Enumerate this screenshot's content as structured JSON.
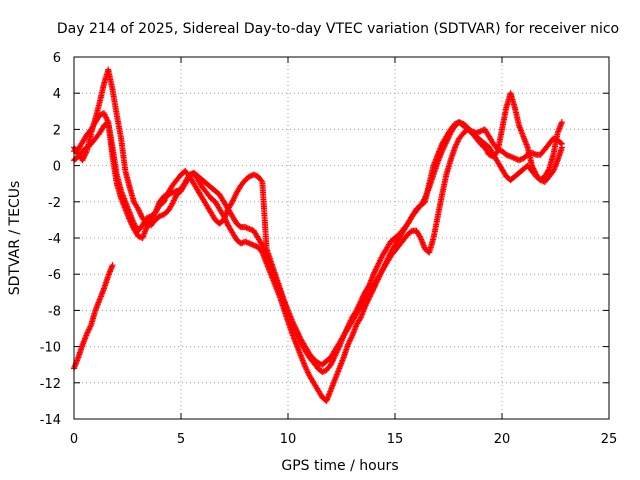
{
  "chart_data": {
    "type": "scatter",
    "title": "Day 214 of 2025, Sidereal Day-to-day VTEC variation (SDTVAR) for receiver nico",
    "xlabel": "GPS time / hours",
    "ylabel": "SDTVAR / TECUs",
    "xlim": [
      0,
      25
    ],
    "ylim": [
      -14,
      6
    ],
    "xticks": [
      0,
      5,
      10,
      15,
      20,
      25
    ],
    "yticks": [
      -14,
      -12,
      -10,
      -8,
      -6,
      -4,
      -2,
      0,
      2,
      4,
      6
    ],
    "grid": true,
    "marker": "plus",
    "color": "#ff0000",
    "series": [
      {
        "name": "track-1",
        "x": [
          0.0,
          0.2,
          0.4,
          0.6,
          0.8,
          1.0,
          1.2,
          1.4,
          1.6,
          1.8,
          2.0,
          2.2,
          2.4,
          2.6,
          2.8,
          3.0,
          3.2,
          3.4,
          3.6,
          3.8,
          4.0,
          4.2,
          4.4,
          4.6,
          4.8,
          5.0,
          5.2,
          5.4,
          5.6,
          5.8,
          6.0,
          6.2,
          6.4,
          6.6,
          6.8,
          7.0,
          7.2,
          7.4,
          7.6,
          7.8,
          8.0,
          8.2,
          8.4,
          8.6,
          8.8,
          9.0,
          9.2,
          9.4,
          9.6,
          9.8,
          10.0,
          10.2,
          10.4,
          10.6,
          10.8,
          11.0,
          11.2,
          11.4,
          11.6,
          11.8,
          12.0,
          12.2,
          12.4,
          12.6,
          12.8,
          13.0,
          13.2,
          13.4,
          13.6,
          13.8,
          14.0,
          14.2,
          14.4,
          14.6,
          14.8,
          15.0,
          15.2,
          15.4,
          15.6,
          15.8,
          16.0,
          16.2,
          16.4,
          16.6,
          16.8,
          17.0,
          17.2,
          17.4,
          17.6,
          17.8,
          18.0,
          18.2,
          18.4,
          18.6,
          18.8,
          19.0,
          19.2,
          19.4,
          19.6,
          19.8,
          20.0,
          20.2,
          20.4,
          20.6,
          20.8,
          21.0,
          21.2,
          21.4,
          21.6,
          21.8,
          22.0,
          22.2,
          22.4,
          22.6,
          22.8
        ],
        "y": [
          0.8,
          0.9,
          1.3,
          1.7,
          2.0,
          2.4,
          2.8,
          2.9,
          2.4,
          1.0,
          -0.5,
          -1.4,
          -2.0,
          -2.6,
          -3.2,
          -3.6,
          -3.3,
          -2.9,
          -2.8,
          -2.6,
          -2.0,
          -1.7,
          -1.6,
          -1.5,
          -1.4,
          -1.3,
          -0.9,
          -0.5,
          -0.4,
          -0.6,
          -0.8,
          -1.0,
          -1.2,
          -1.4,
          -1.6,
          -2.0,
          -2.4,
          -2.8,
          -3.2,
          -3.4,
          -3.4,
          -3.5,
          -3.6,
          -4.0,
          -4.4,
          -5.0,
          -5.6,
          -6.2,
          -6.8,
          -7.5,
          -8.2,
          -8.8,
          -9.3,
          -9.8,
          -10.2,
          -10.6,
          -10.9,
          -11.2,
          -11.4,
          -11.3,
          -11.0,
          -10.5,
          -10.0,
          -9.4,
          -9.0,
          -8.6,
          -8.2,
          -7.8,
          -7.4,
          -7.0,
          -6.6,
          -6.2,
          -5.8,
          -5.4,
          -5.0,
          -4.7,
          -4.4,
          -4.1,
          -3.8,
          -3.6,
          -3.6,
          -4.0,
          -4.6,
          -4.8,
          -4.0,
          -2.8,
          -1.6,
          -0.5,
          0.3,
          1.0,
          1.5,
          1.8,
          2.0,
          1.9,
          1.8,
          1.9,
          2.0,
          1.6,
          1.2,
          0.9,
          0.8,
          0.6,
          0.5,
          0.4,
          0.3,
          0.4,
          0.6,
          0.7,
          0.6,
          0.6,
          0.9,
          1.2,
          1.5,
          1.4,
          1.2
        ]
      },
      {
        "name": "track-2",
        "x": [
          0.0,
          0.2,
          0.4,
          0.6,
          0.8,
          1.0,
          1.2,
          1.4,
          1.6,
          1.8,
          2.0,
          2.2,
          2.4,
          2.6,
          2.8,
          3.0,
          3.2,
          3.4,
          3.6,
          3.8,
          4.0,
          4.2,
          4.4,
          4.6,
          4.8,
          5.0,
          5.2,
          5.4,
          5.6,
          5.8,
          6.0,
          6.2,
          6.4,
          6.6,
          6.8,
          7.0,
          7.2,
          7.4,
          7.6,
          7.8,
          8.0,
          8.2,
          8.4,
          8.6,
          8.8,
          9.0,
          9.2,
          9.4,
          9.6,
          9.8,
          10.0,
          10.2,
          10.4,
          10.6,
          10.8,
          11.0,
          11.2,
          11.4,
          11.6,
          11.8,
          12.0,
          12.2,
          12.4,
          12.6,
          12.8,
          13.0,
          13.2,
          13.4,
          13.6,
          13.8,
          14.0,
          14.2,
          14.4,
          14.6,
          14.8,
          15.0,
          15.2,
          15.4,
          15.6,
          15.8,
          16.0,
          16.2,
          16.4,
          16.6,
          16.8,
          17.0,
          17.2,
          17.4,
          17.6,
          17.8,
          18.0,
          18.2,
          18.4,
          18.6,
          18.8,
          19.0,
          19.2,
          19.4,
          19.6,
          19.8,
          20.0,
          20.2,
          20.4,
          20.6,
          20.8,
          21.0,
          21.2,
          21.4,
          21.6,
          21.8,
          22.0,
          22.2,
          22.4,
          22.6,
          22.8
        ],
        "y": [
          0.3,
          0.5,
          0.8,
          1.0,
          1.2,
          1.5,
          1.8,
          2.2,
          2.4,
          0.5,
          -1.0,
          -1.8,
          -2.4,
          -3.0,
          -3.5,
          -3.9,
          -4.0,
          -3.4,
          -3.0,
          -2.6,
          -2.2,
          -2.0,
          -1.5,
          -1.1,
          -0.8,
          -0.5,
          -0.3,
          -0.6,
          -1.0,
          -1.4,
          -1.8,
          -2.2,
          -2.6,
          -3.0,
          -3.2,
          -3.0,
          -2.4,
          -2.0,
          -1.5,
          -1.1,
          -0.8,
          -0.6,
          -0.5,
          -0.6,
          -0.9,
          -4.6,
          -5.3,
          -6.0,
          -6.7,
          -7.4,
          -8.0,
          -8.6,
          -9.1,
          -9.6,
          -10.0,
          -10.4,
          -10.7,
          -10.9,
          -11.0,
          -10.8,
          -10.6,
          -10.2,
          -9.8,
          -9.4,
          -8.9,
          -8.4,
          -8.0,
          -7.5,
          -7.0,
          -6.6,
          -6.0,
          -5.5,
          -5.0,
          -4.6,
          -4.2,
          -4.0,
          -3.8,
          -3.5,
          -3.2,
          -2.8,
          -2.4,
          -2.2,
          -1.8,
          -1.2,
          -0.5,
          0.2,
          0.8,
          1.3,
          1.8,
          2.2,
          2.4,
          2.3,
          2.1,
          1.8,
          1.5,
          1.2,
          1.0,
          0.6,
          0.5,
          0.8,
          2.0,
          3.2,
          4.0,
          3.2,
          2.2,
          1.6,
          1.0,
          0.0,
          -0.5,
          -0.8,
          -0.6,
          -0.2,
          0.6,
          1.8,
          2.4
        ]
      },
      {
        "name": "track-3",
        "x": [
          0.0,
          0.2,
          0.4,
          0.6,
          0.8,
          1.0,
          1.2,
          1.4,
          1.6,
          1.8,
          2.0,
          2.2,
          2.4,
          2.6,
          2.8,
          3.0,
          3.2,
          3.4,
          3.6,
          3.8,
          4.0,
          4.2,
          4.4,
          4.6,
          4.8,
          5.0,
          5.2,
          5.4,
          5.6,
          5.8,
          6.0,
          6.2,
          6.4,
          6.6,
          6.8,
          7.0,
          7.2,
          7.4,
          7.6,
          7.8,
          8.0,
          8.2,
          8.4,
          8.6,
          8.8,
          9.0,
          9.2,
          9.4,
          9.6,
          9.8,
          10.0,
          10.2,
          10.4,
          10.6,
          10.8,
          11.0,
          11.2,
          11.4,
          11.6,
          11.8,
          12.0,
          12.2,
          12.4,
          12.6,
          12.8,
          13.0,
          13.2,
          13.4,
          13.6,
          13.8,
          14.0,
          14.2,
          14.4,
          14.6,
          14.8,
          15.0,
          15.2,
          15.4,
          15.6,
          15.8,
          16.0,
          16.2,
          16.4,
          16.6,
          16.8,
          17.0,
          17.2,
          17.4,
          17.6,
          17.8,
          18.0,
          18.2,
          18.4,
          18.6,
          18.8,
          19.0,
          19.2,
          19.4,
          19.6,
          19.8,
          20.0,
          20.2,
          20.4,
          20.6,
          20.8,
          21.0,
          21.2,
          21.4,
          21.6,
          21.8,
          22.0,
          22.2,
          22.4,
          22.6,
          22.8
        ],
        "y": [
          1.0,
          0.6,
          0.3,
          0.8,
          1.8,
          2.6,
          3.5,
          4.5,
          5.3,
          4.2,
          2.8,
          1.5,
          -0.3,
          -1.2,
          -2.0,
          -2.4,
          -2.9,
          -3.2,
          -3.3,
          -3.0,
          -2.8,
          -2.7,
          -2.5,
          -2.1,
          -1.6,
          -1.4,
          -1.0,
          -0.6,
          -0.4,
          -0.8,
          -1.2,
          -1.5,
          -1.8,
          -2.0,
          -2.4,
          -2.8,
          -3.3,
          -3.7,
          -4.1,
          -4.3,
          -4.2,
          -4.3,
          -4.4,
          -4.5,
          -4.8,
          -5.4,
          -6.0,
          -6.6,
          -7.2,
          -7.9,
          -8.6,
          -9.3,
          -9.9,
          -10.5,
          -11.1,
          -11.6,
          -12.0,
          -12.4,
          -12.8,
          -13.0,
          -12.4,
          -11.8,
          -11.2,
          -10.6,
          -9.9,
          -9.4,
          -8.8,
          -8.4,
          -7.8,
          -7.3,
          -6.8,
          -6.3,
          -5.8,
          -5.3,
          -4.8,
          -4.4,
          -4.0,
          -3.6,
          -3.2,
          -2.8,
          -2.5,
          -2.2,
          -2.0,
          -1.0,
          0.0,
          0.6,
          1.2,
          1.6,
          2.0,
          2.3,
          2.4,
          2.2,
          2.0,
          1.8,
          1.6,
          1.4,
          1.2,
          1.0,
          0.6,
          0.2,
          -0.2,
          -0.6,
          -0.8,
          -0.6,
          -0.4,
          -0.2,
          0.0,
          -0.3,
          -0.6,
          -0.8,
          -0.9,
          -0.6,
          -0.3,
          0.3,
          1.0
        ]
      },
      {
        "name": "track-4",
        "x": [
          0.0,
          0.2,
          0.4,
          0.6,
          0.8,
          1.0,
          1.2,
          1.4,
          1.6,
          1.8
        ],
        "y": [
          -11.2,
          -10.6,
          -9.9,
          -9.3,
          -8.8,
          -8.0,
          -7.4,
          -6.8,
          -6.1,
          -5.5
        ]
      }
    ]
  }
}
